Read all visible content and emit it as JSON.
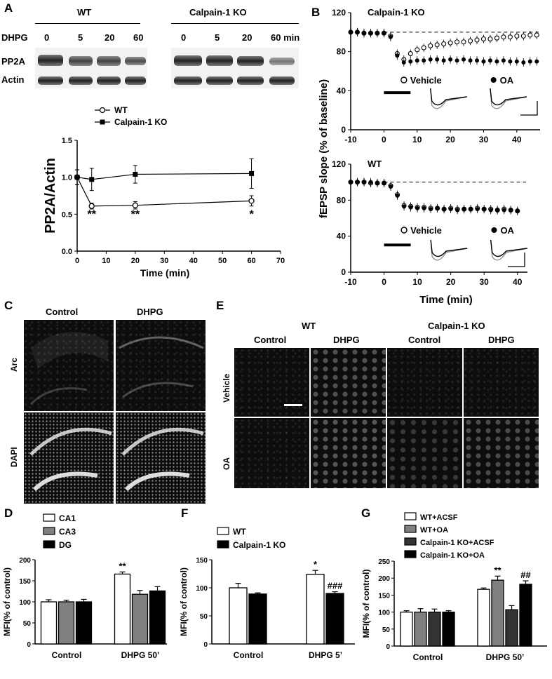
{
  "panels": {
    "A": "A",
    "B": "B",
    "C": "C",
    "D": "D",
    "E": "E",
    "F": "F",
    "G": "G"
  },
  "panel_a": {
    "wt_header": "WT",
    "ko_header": "Calpain-1 KO",
    "dhpg_label": "DHPG",
    "wt_times": [
      "0",
      "5",
      "20",
      "60"
    ],
    "ko_times": [
      "0",
      "5",
      "20",
      "60 min"
    ],
    "row_pp2a": "PP2A",
    "row_actin": "Actin",
    "chart_data": {
      "type": "line",
      "xlabel": "Time (min)",
      "ylabel": "PP2A/Actin",
      "xlim": [
        0,
        70
      ],
      "ylim": [
        0.0,
        1.5
      ],
      "x_ticks": [
        "0",
        "10",
        "20",
        "30",
        "40",
        "50",
        "60",
        "70"
      ],
      "y_ticks": [
        "0.0",
        "0.5",
        "1.0",
        "1.5"
      ],
      "series": [
        {
          "name": "WT",
          "marker": "open-circle",
          "x": [
            0,
            5,
            20,
            60
          ],
          "y": [
            1.0,
            0.61,
            0.62,
            0.68
          ],
          "err": [
            0.1,
            0.04,
            0.05,
            0.07
          ]
        },
        {
          "name": "Calpain-1 KO",
          "marker": "filled-square",
          "x": [
            0,
            5,
            20,
            60
          ],
          "y": [
            1.0,
            0.97,
            1.04,
            1.05
          ],
          "err": [
            0.1,
            0.15,
            0.12,
            0.2
          ]
        }
      ],
      "annotations": [
        {
          "x": 5,
          "text": "**"
        },
        {
          "x": 20,
          "text": "**"
        },
        {
          "x": 60,
          "text": "*"
        }
      ]
    }
  },
  "panel_b": {
    "ylabel": "fEPSP slope (% of baseline)",
    "xlabel": "Time (min)",
    "chart_data": [
      {
        "type": "scatter",
        "title": "Calpain-1 KO",
        "xlim": [
          -10,
          47
        ],
        "ylim": [
          0,
          120
        ],
        "x_ticks": [
          "-10",
          "0",
          "10",
          "20",
          "30",
          "40"
        ],
        "y_ticks": [
          "0",
          "40",
          "80",
          "120"
        ],
        "baseline": 100,
        "legend": [
          "Vehicle",
          "OA"
        ],
        "series": [
          {
            "name": "Vehicle",
            "marker": "open-circle",
            "x": [
              -10,
              -8,
              -6,
              -4,
              -2,
              0,
              2,
              4,
              6,
              8,
              10,
              12,
              14,
              16,
              18,
              20,
              22,
              24,
              26,
              28,
              30,
              32,
              34,
              36,
              38,
              40,
              42,
              44,
              46
            ],
            "y": [
              100,
              100,
              99,
              99,
              99,
              99,
              96,
              78,
              72,
              78,
              82,
              84,
              86,
              87,
              88,
              89,
              90,
              90,
              91,
              92,
              93,
              93,
              94,
              95,
              95,
              96,
              96,
              97,
              97
            ]
          },
          {
            "name": "OA",
            "marker": "filled-circle",
            "x": [
              -10,
              -8,
              -6,
              -4,
              -2,
              0,
              2,
              4,
              6,
              8,
              10,
              12,
              14,
              16,
              18,
              20,
              22,
              24,
              26,
              28,
              30,
              32,
              34,
              36,
              38,
              40,
              42,
              44,
              46
            ],
            "y": [
              100,
              100,
              99,
              99,
              99,
              99,
              95,
              76,
              69,
              70,
              71,
              71,
              72,
              72,
              71,
              72,
              71,
              72,
              71,
              71,
              70,
              71,
              70,
              71,
              70,
              70,
              69,
              70,
              70
            ]
          }
        ]
      },
      {
        "type": "scatter",
        "title": "WT",
        "xlim": [
          -10,
          43
        ],
        "ylim": [
          0,
          120
        ],
        "x_ticks": [
          "-10",
          "0",
          "10",
          "20",
          "30",
          "40"
        ],
        "y_ticks": [
          "0",
          "40",
          "80",
          "120"
        ],
        "baseline": 100,
        "legend": [
          "Vehicle",
          "OA"
        ],
        "series": [
          {
            "name": "Vehicle",
            "marker": "open-circle",
            "x": [
              -10,
              -8,
              -6,
              -4,
              -2,
              0,
              2,
              4,
              6,
              8,
              10,
              12,
              14,
              16,
              18,
              20,
              22,
              24,
              26,
              28,
              30,
              32,
              34,
              36,
              38,
              40
            ],
            "y": [
              100,
              100,
              100,
              99,
              99,
              99,
              96,
              86,
              74,
              73,
              72,
              72,
              71,
              71,
              70,
              71,
              70,
              70,
              70,
              71,
              70,
              70,
              69,
              70,
              69,
              68
            ]
          },
          {
            "name": "OA",
            "marker": "filled-circle",
            "x": [
              -10,
              -8,
              -6,
              -4,
              -2,
              0,
              2,
              4,
              6,
              8,
              10,
              12,
              14,
              16,
              18,
              20,
              22,
              24,
              26,
              28,
              30,
              32,
              34,
              36,
              38,
              40
            ],
            "y": [
              100,
              100,
              100,
              100,
              99,
              99,
              95,
              85,
              73,
              72,
              71,
              71,
              70,
              71,
              70,
              70,
              69,
              70,
              70,
              70,
              70,
              69,
              69,
              69,
              69,
              68
            ]
          }
        ]
      }
    ]
  },
  "panel_c": {
    "col_control": "Control",
    "col_dhpg": "DHPG",
    "row_arc": "Arc",
    "row_dapi": "DAPI"
  },
  "panel_e": {
    "wt_header": "WT",
    "ko_header": "Calpain-1 KO",
    "cols": [
      "Control",
      "DHPG",
      "Control",
      "DHPG"
    ],
    "row_vehicle": "Vehicle",
    "row_oa": "OA"
  },
  "panel_d": {
    "chart_data": {
      "type": "bar",
      "ylabel": "MFI(% of control)",
      "categories": [
        "Control",
        "DHPG 50’"
      ],
      "ylim": [
        0,
        200
      ],
      "y_ticks": [
        "0",
        "50",
        "100",
        "150",
        "200"
      ],
      "legend": [
        "CA1",
        "CA3",
        "DG"
      ],
      "colors": [
        "#ffffff",
        "#808080",
        "#000000"
      ],
      "series": [
        {
          "name": "CA1",
          "values": [
            100,
            166
          ],
          "err": [
            5,
            5
          ]
        },
        {
          "name": "CA3",
          "values": [
            100,
            118
          ],
          "err": [
            4,
            9
          ]
        },
        {
          "name": "DG",
          "values": [
            100,
            126
          ],
          "err": [
            6,
            10
          ]
        }
      ],
      "annotations": [
        {
          "category": 1,
          "series": 0,
          "text": "**"
        }
      ]
    }
  },
  "panel_f": {
    "chart_data": {
      "type": "bar",
      "ylabel": "MFI(% of control)",
      "categories": [
        "Control",
        "DHPG 5’"
      ],
      "ylim": [
        0,
        150
      ],
      "y_ticks": [
        "0",
        "50",
        "100",
        "150"
      ],
      "legend": [
        "WT",
        "Calpain-1 KO"
      ],
      "colors": [
        "#ffffff",
        "#000000"
      ],
      "series": [
        {
          "name": "WT",
          "values": [
            100,
            124
          ],
          "err": [
            8,
            7
          ]
        },
        {
          "name": "Calpain-1 KO",
          "values": [
            89,
            90
          ],
          "err": [
            2,
            3
          ]
        }
      ],
      "annotations": [
        {
          "category": 1,
          "series": 0,
          "text": "*"
        },
        {
          "category": 1,
          "series": 1,
          "text": "###"
        }
      ]
    }
  },
  "panel_g": {
    "chart_data": {
      "type": "bar",
      "ylabel": "MFI(% of control)",
      "categories": [
        "Control",
        "DHPG 50’"
      ],
      "ylim": [
        0,
        250
      ],
      "y_ticks": [
        "0",
        "50",
        "100",
        "150",
        "200",
        "250"
      ],
      "legend": [
        "WT+ACSF",
        "WT+OA",
        "Calpain-1 KO+ACSF",
        "Calpain-1 KO+OA"
      ],
      "colors": [
        "#ffffff",
        "#808080",
        "#333333",
        "#000000"
      ],
      "series": [
        {
          "name": "WT+ACSF",
          "values": [
            100,
            167
          ],
          "err": [
            4,
            4
          ]
        },
        {
          "name": "WT+OA",
          "values": [
            100,
            194
          ],
          "err": [
            10,
            12
          ]
        },
        {
          "name": "Calpain-1 KO+ACSF",
          "values": [
            100,
            107
          ],
          "err": [
            9,
            12
          ]
        },
        {
          "name": "Calpain-1 KO+OA",
          "values": [
            100,
            182
          ],
          "err": [
            4,
            10
          ]
        }
      ],
      "annotations": [
        {
          "category": 1,
          "series": 1,
          "text": "**"
        },
        {
          "category": 1,
          "series": 3,
          "text": "##"
        }
      ]
    }
  }
}
